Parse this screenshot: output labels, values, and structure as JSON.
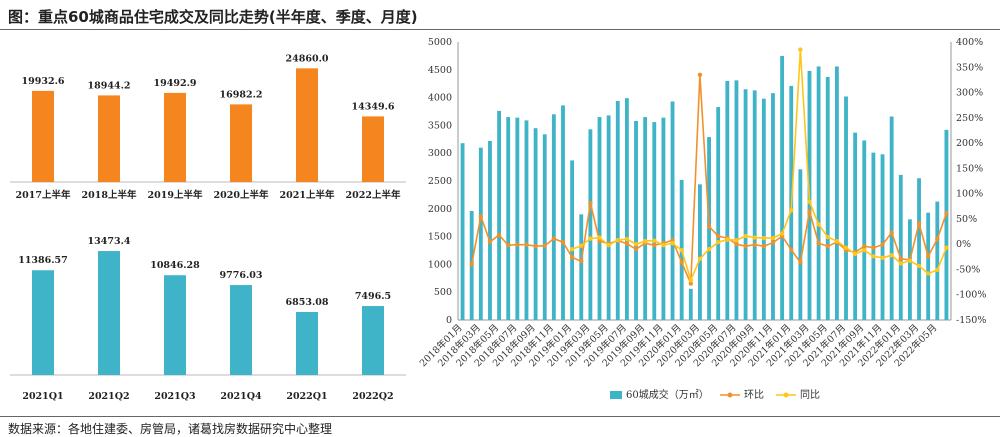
{
  "title": "图：重点60城商品住宅成交及同比走势(半年度、季度、月度)",
  "footer": "数据来源：各地住建委、房管局，诸葛找房数据研究中心整理",
  "colors": {
    "orange": "#f5851f",
    "teal": "#3fb3c8",
    "line_orange": "#f0922b",
    "line_yellow": "#ffc61a"
  },
  "chart_data": [
    {
      "type": "bar",
      "categories": [
        "2017上半年",
        "2018上半年",
        "2019上半年",
        "2020上半年",
        "2021上半年",
        "2022上半年"
      ],
      "series": [
        {
          "values": [
            19932.6,
            18944.2,
            19492.9,
            16982.2,
            24860.0,
            14349.6
          ]
        }
      ],
      "value_labels": [
        "19932.6",
        "18944.2",
        "19492.9",
        "16982.2",
        "24860.0",
        "14349.6"
      ],
      "ylim": [
        0,
        28000
      ]
    },
    {
      "type": "bar",
      "categories": [
        "2021Q1",
        "2021Q2",
        "2021Q3",
        "2021Q4",
        "2022Q1",
        "2022Q2"
      ],
      "series": [
        {
          "values": [
            11386.57,
            13473.4,
            10846.28,
            9776.03,
            6853.08,
            7496.5
          ]
        }
      ],
      "value_labels": [
        "11386.57",
        "13473.4",
        "10846.28",
        "9776.03",
        "6853.08",
        "7496.5"
      ],
      "ylim": [
        0,
        15000
      ]
    },
    {
      "type": "bar+line",
      "x": [
        "2018年01月",
        "2018年02月",
        "2018年03月",
        "2018年04月",
        "2018年05月",
        "2018年06月",
        "2018年07月",
        "2018年08月",
        "2018年09月",
        "2018年10月",
        "2018年11月",
        "2018年12月",
        "2019年01月",
        "2019年02月",
        "2019年03月",
        "2019年04月",
        "2019年05月",
        "2019年06月",
        "2019年07月",
        "2019年08月",
        "2019年09月",
        "2019年10月",
        "2019年11月",
        "2019年12月",
        "2020年01月",
        "2020年02月",
        "2020年03月",
        "2020年04月",
        "2020年05月",
        "2020年06月",
        "2020年07月",
        "2020年08月",
        "2020年09月",
        "2020年10月",
        "2020年11月",
        "2020年12月",
        "2021年01月",
        "2021年02月",
        "2021年03月",
        "2021年04月",
        "2021年05月",
        "2021年06月",
        "2021年07月",
        "2021年08月",
        "2021年09月",
        "2021年10月",
        "2021年11月",
        "2021年12月",
        "2022年01月",
        "2022年02月",
        "2022年03月",
        "2022年04月",
        "2022年05月",
        "2022年06月"
      ],
      "x_tick_labels": [
        "2018年01月",
        "2018年03月",
        "2018年05月",
        "2018年07月",
        "2018年09月",
        "2018年11月",
        "2019年01月",
        "2019年03月",
        "2019年05月",
        "2019年07月",
        "2019年09月",
        "2019年11月",
        "2020年01月",
        "2020年03月",
        "2020年05月",
        "2020年07月",
        "2020年09月",
        "2020年11月",
        "2021年01月",
        "2021年03月",
        "2021年05月",
        "2021年07月",
        "2021年09月",
        "2021年11月",
        "2022年01月",
        "2022年03月",
        "2022年05月"
      ],
      "series": [
        {
          "name": "60城成交（万㎡）",
          "type": "bar",
          "axis": "left",
          "values": [
            3180,
            1960,
            3100,
            3220,
            3760,
            3650,
            3640,
            3590,
            3450,
            3340,
            3700,
            3860,
            2870,
            1900,
            3430,
            3650,
            3680,
            3940,
            3990,
            3580,
            3650,
            3560,
            3640,
            3930,
            2520,
            560,
            2440,
            3290,
            3830,
            4300,
            4310,
            4150,
            4130,
            3980,
            4080,
            4750,
            4210,
            2710,
            4480,
            4560,
            4370,
            4560,
            4020,
            3370,
            3230,
            3010,
            2980,
            3660,
            2610,
            1810,
            2550,
            1930,
            2130,
            3420
          ]
        },
        {
          "name": "环比",
          "type": "line",
          "axis": "right",
          "values": [
            null,
            -40,
            55,
            5,
            18,
            -2,
            -1,
            -1,
            -4,
            -3,
            11,
            4,
            -26,
            -34,
            81,
            6,
            1,
            7,
            1,
            -10,
            2,
            -2,
            2,
            8,
            -36,
            -78,
            335,
            35,
            16,
            12,
            0,
            -4,
            -1,
            -4,
            3,
            16,
            -11,
            -36,
            65,
            2,
            -4,
            4,
            -12,
            -16,
            -4,
            -7,
            -1,
            23,
            -29,
            -31,
            41,
            -24,
            10,
            61
          ]
        },
        {
          "name": "同比",
          "type": "line",
          "axis": "right",
          "values": [
            null,
            null,
            null,
            null,
            null,
            null,
            null,
            null,
            null,
            null,
            null,
            null,
            -10,
            -3,
            11,
            13,
            -2,
            8,
            10,
            0,
            6,
            7,
            -2,
            2,
            -12,
            -71,
            -29,
            -10,
            4,
            9,
            8,
            16,
            13,
            12,
            12,
            21,
            67,
            385,
            84,
            39,
            14,
            6,
            -7,
            -19,
            -12,
            -24,
            -27,
            -22,
            -38,
            -33,
            -43,
            -58,
            -51,
            -7
          ]
        }
      ],
      "ylim_left": [
        0,
        5000
      ],
      "ylim_right": [
        -150,
        400
      ],
      "left_ticks": [
        "0",
        "500",
        "1000",
        "1500",
        "2000",
        "2500",
        "3000",
        "3500",
        "4000",
        "4500",
        "5000"
      ],
      "right_ticks": [
        "-150%",
        "-100%",
        "-50%",
        "0%",
        "50%",
        "100%",
        "150%",
        "200%",
        "250%",
        "300%",
        "350%",
        "400%"
      ],
      "legend_position": "bottom",
      "legend": [
        "60城成交（万㎡）",
        "环比",
        "同比"
      ]
    }
  ]
}
